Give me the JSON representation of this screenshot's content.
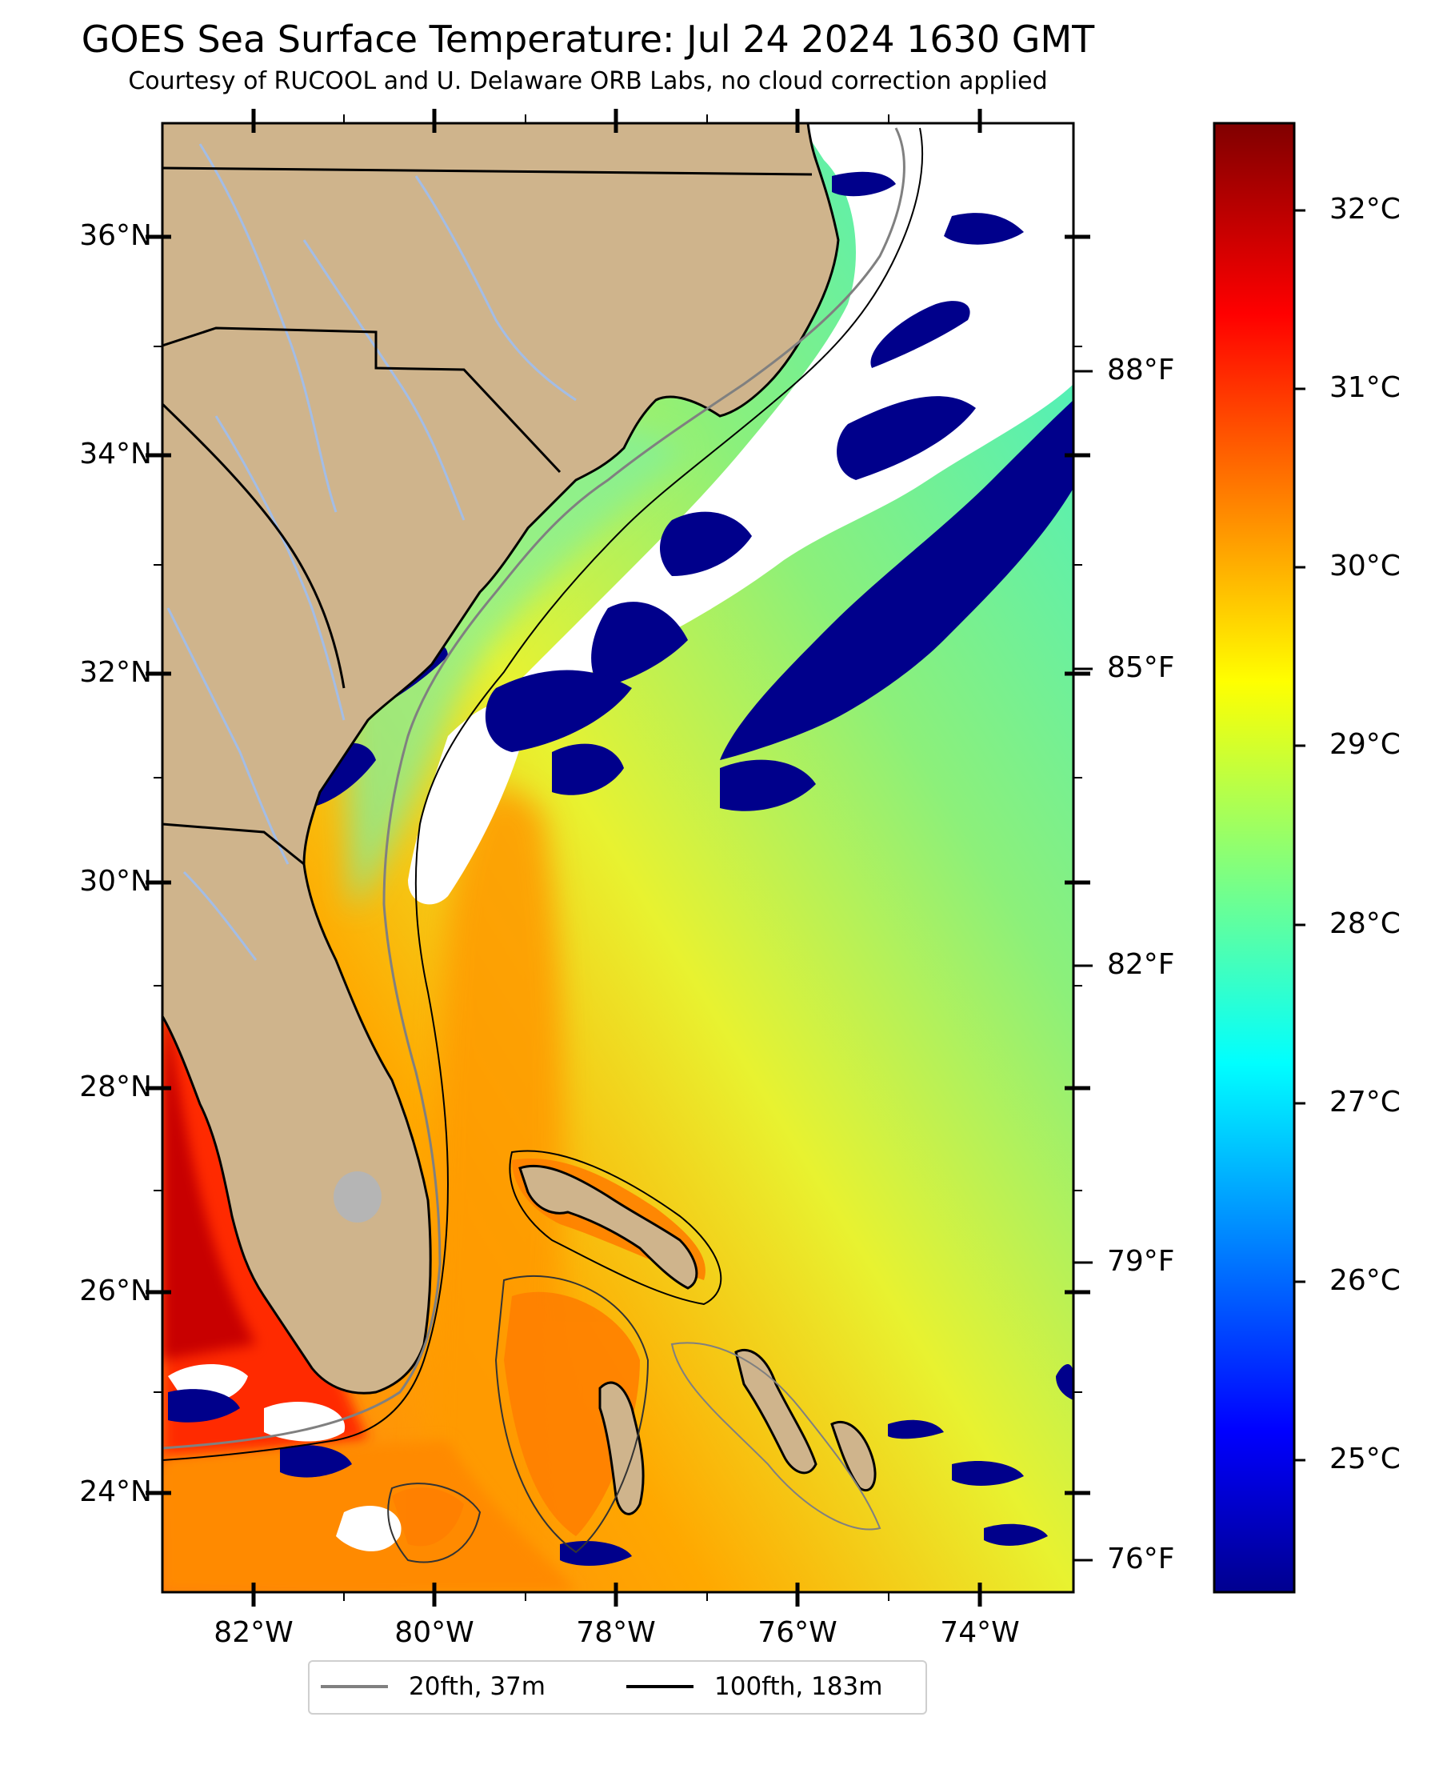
{
  "title": "GOES Sea Surface Temperature: Jul 24 2024 1630 GMT",
  "subtitle": "Courtesy of RUCOOL and U. Delaware ORB Labs, no cloud correction applied",
  "lat_ticks": [
    "36°N",
    "34°N",
    "32°N",
    "30°N",
    "28°N",
    "26°N",
    "24°N"
  ],
  "lon_ticks": [
    "82°W",
    "80°W",
    "78°W",
    "76°W",
    "74°W"
  ],
  "fahrenheit_ticks": [
    "88°F",
    "85°F",
    "82°F",
    "79°F",
    "76°F"
  ],
  "colorbar_ticks": [
    "32°C",
    "31°C",
    "30°C",
    "29°C",
    "28°C",
    "27°C",
    "26°C",
    "25°C"
  ],
  "colorbar_range_c": [
    24.5,
    32.4
  ],
  "legend": [
    {
      "label": "20fth, 37m",
      "color": "#808080"
    },
    {
      "label": "100fth, 183m",
      "color": "#000000"
    }
  ],
  "colors": {
    "land": "#cfb48c",
    "cloud": "#ffffff",
    "cold": "#00008b",
    "warm": "#ff8c00",
    "hot": "#d40000",
    "river": "#a3bde6"
  }
}
